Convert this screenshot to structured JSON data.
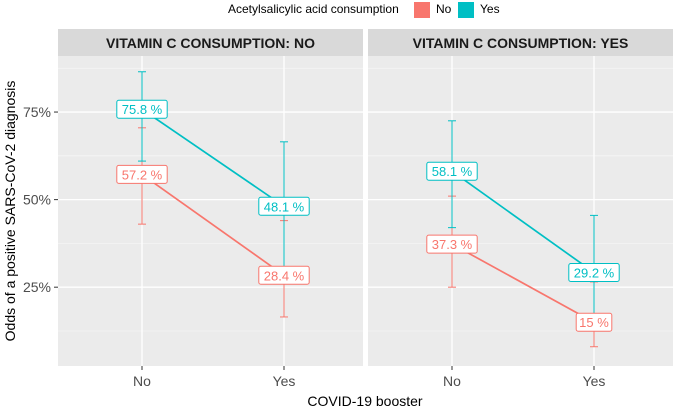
{
  "chart_data": {
    "type": "line",
    "legend": {
      "title": "Acetylsalicylic acid consumption",
      "position": "top",
      "entries": [
        {
          "name": "No",
          "color": "#F8766D"
        },
        {
          "name": "Yes",
          "color": "#00BFC4"
        }
      ]
    },
    "xlabel": "COVID-19 booster",
    "ylabel": "Odds of a positive SARS-CoV-2 diagnosis",
    "categories": [
      "No",
      "Yes"
    ],
    "ylim": [
      0.025,
      0.91
    ],
    "yticks": [
      0.25,
      0.5,
      0.75
    ],
    "ytick_labels": [
      "25%",
      "50%",
      "75%"
    ],
    "panels": [
      {
        "title": "VITAMIN C CONSUMPTION: NO",
        "series": [
          {
            "name": "No",
            "color": "#F8766D",
            "values": [
              0.572,
              0.284
            ],
            "lower": [
              0.43,
              0.165
            ],
            "upper": [
              0.705,
              0.44
            ],
            "labels": [
              "57.2 %",
              "28.4 %"
            ]
          },
          {
            "name": "Yes",
            "color": "#00BFC4",
            "values": [
              0.758,
              0.481
            ],
            "lower": [
              0.61,
              0.295
            ],
            "upper": [
              0.865,
              0.665
            ],
            "labels": [
              "75.8 %",
              "48.1 %"
            ]
          }
        ]
      },
      {
        "title": "VITAMIN C CONSUMPTION: YES",
        "series": [
          {
            "name": "No",
            "color": "#F8766D",
            "values": [
              0.373,
              0.15
            ],
            "lower": [
              0.25,
              0.08
            ],
            "upper": [
              0.51,
              0.265
            ],
            "labels": [
              "37.3 %",
              "15 %"
            ]
          },
          {
            "name": "Yes",
            "color": "#00BFC4",
            "values": [
              0.581,
              0.292
            ],
            "lower": [
              0.42,
              0.165
            ],
            "upper": [
              0.725,
              0.455
            ],
            "labels": [
              "58.1 %",
              "29.2 %"
            ]
          }
        ]
      }
    ]
  }
}
